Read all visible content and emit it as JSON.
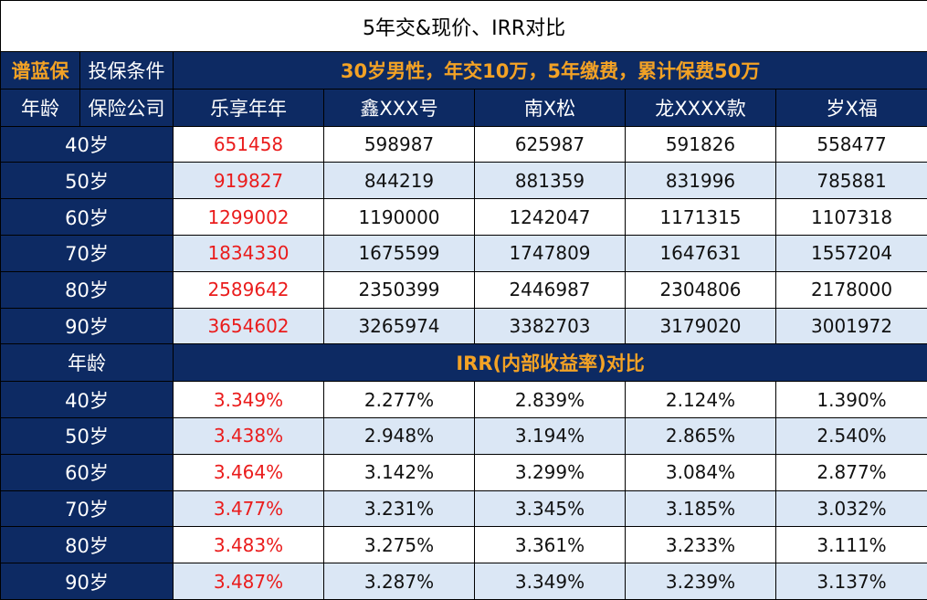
{
  "title": "5年交&现价、IRR对比",
  "brand": "谱蓝保",
  "condition_label": "投保条件",
  "condition_text": "30岁男性，年交10万，5年缴费，累计保费50万",
  "age_label": "年龄",
  "company_label": "保险公司",
  "products": [
    "乐享年年",
    "鑫XXX号",
    "南X松",
    "龙XXXX款",
    "岁X福"
  ],
  "cash_value_rows": [
    {
      "age": "40岁",
      "values": [
        "651458",
        "598987",
        "625987",
        "591826",
        "558477"
      ]
    },
    {
      "age": "50岁",
      "values": [
        "919827",
        "844219",
        "881359",
        "831996",
        "785881"
      ]
    },
    {
      "age": "60岁",
      "values": [
        "1299002",
        "1190000",
        "1242047",
        "1171315",
        "1107318"
      ]
    },
    {
      "age": "70岁",
      "values": [
        "1834330",
        "1675599",
        "1747809",
        "1647631",
        "1557204"
      ]
    },
    {
      "age": "80岁",
      "values": [
        "2589642",
        "2350399",
        "2446987",
        "2304806",
        "2178000"
      ]
    },
    {
      "age": "90岁",
      "values": [
        "3654602",
        "3265974",
        "3382703",
        "3179020",
        "3001972"
      ]
    }
  ],
  "irr_section_age_label": "年龄",
  "irr_section_title": "IRR(内部收益率)对比",
  "irr_rows": [
    {
      "age": "40岁",
      "values": [
        "3.349%",
        "2.277%",
        "2.839%",
        "2.124%",
        "1.390%"
      ]
    },
    {
      "age": "50岁",
      "values": [
        "3.438%",
        "2.948%",
        "3.194%",
        "2.865%",
        "2.540%"
      ]
    },
    {
      "age": "60岁",
      "values": [
        "3.464%",
        "3.142%",
        "3.299%",
        "3.084%",
        "2.877%"
      ]
    },
    {
      "age": "70岁",
      "values": [
        "3.477%",
        "3.231%",
        "3.345%",
        "3.185%",
        "3.032%"
      ]
    },
    {
      "age": "80岁",
      "values": [
        "3.483%",
        "3.275%",
        "3.361%",
        "3.233%",
        "3.111%"
      ]
    },
    {
      "age": "90岁",
      "values": [
        "3.487%",
        "3.287%",
        "3.349%",
        "3.239%",
        "3.137%"
      ]
    }
  ],
  "colors": {
    "navy": "#0d2a63",
    "gold": "#f3a225",
    "highlight_red": "#ea1c1c",
    "stripe_blue": "#dbe7f5"
  }
}
